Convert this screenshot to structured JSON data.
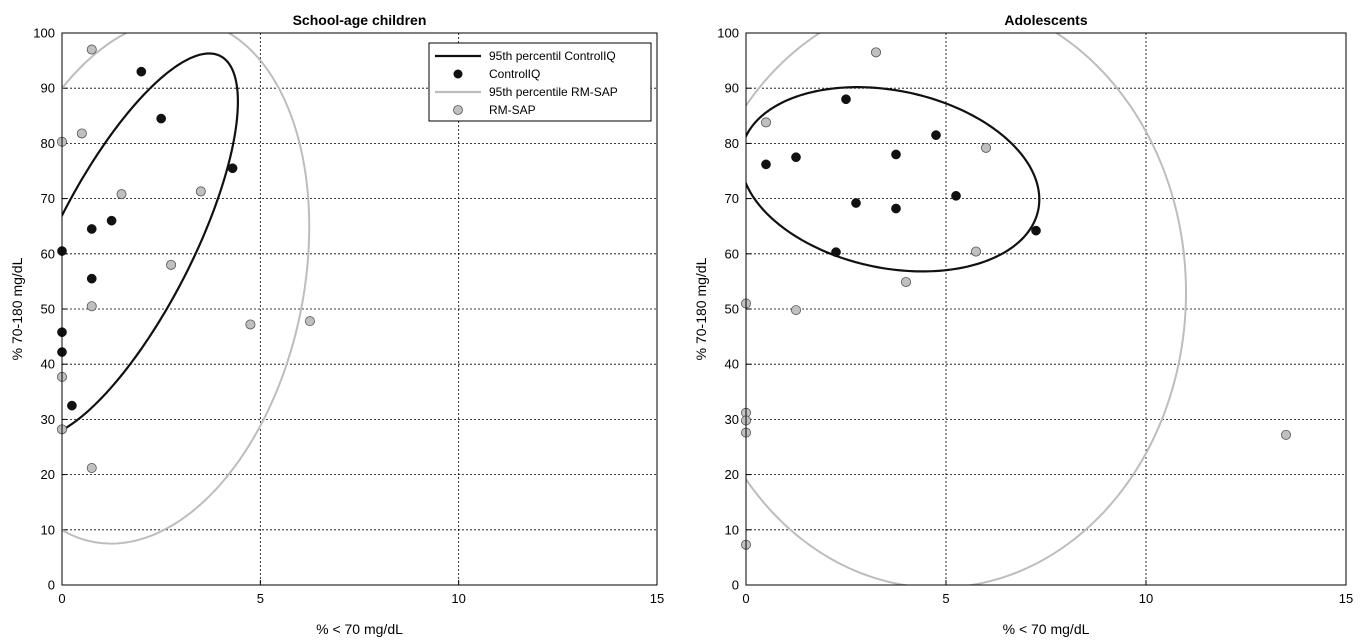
{
  "colors": {
    "controliq": "#111111",
    "rmsap_line": "#bdbdbd",
    "rmsap_marker": "#c0c0c0",
    "grid": "#000000",
    "axis": "#000000"
  },
  "chart_data": [
    {
      "type": "scatter",
      "title": "School-age children",
      "xlabel": "% < 70 mg/dL",
      "ylabel": "% 70-180 mg/dL",
      "xlim": [
        0,
        15
      ],
      "ylim": [
        0,
        100
      ],
      "xticks": [
        0,
        5,
        10,
        15
      ],
      "yticks": [
        0,
        10,
        20,
        30,
        40,
        50,
        60,
        70,
        80,
        90,
        100
      ],
      "grid": true,
      "legend": {
        "placement": "top-right",
        "entries": [
          "95th percentil ControlIQ",
          "ControlIQ",
          "95th percentile RM-SAP",
          "RM-SAP"
        ]
      },
      "series": [
        {
          "name": "ControlIQ",
          "kind": "points",
          "x": [
            2.0,
            2.5,
            4.3,
            1.25,
            0.75,
            0.0,
            0.75,
            0.0,
            0.0,
            0.25
          ],
          "y": [
            93,
            84.5,
            75.5,
            66,
            64.5,
            60.5,
            55.5,
            45.8,
            42.2,
            32.5
          ]
        },
        {
          "name": "RM-SAP",
          "kind": "points",
          "x": [
            0.75,
            0.5,
            0.0,
            1.5,
            3.5,
            2.75,
            0.75,
            4.75,
            6.25,
            0.0,
            0.0,
            0.75
          ],
          "y": [
            97,
            81.8,
            80.3,
            70.8,
            71.3,
            58,
            50.5,
            47.2,
            47.8,
            37.7,
            28.2,
            21.2
          ]
        },
        {
          "name": "95th percentil ControlIQ",
          "kind": "ellipse",
          "center": [
            1.55,
            61.5
          ],
          "axes": [
            1.75,
            38.0
          ],
          "rotation_deg": -25
        },
        {
          "name": "95th percentile RM-SAP",
          "kind": "ellipse",
          "center": [
            2.1,
            55.0
          ],
          "axes": [
            4.0,
            48.0
          ],
          "rotation_deg": -10
        }
      ]
    },
    {
      "type": "scatter",
      "title": "Adolescents",
      "xlabel": "% < 70 mg/dL",
      "ylabel": "% 70-180 mg/dL",
      "xlim": [
        0,
        15
      ],
      "ylim": [
        0,
        100
      ],
      "xticks": [
        0,
        5,
        10,
        15
      ],
      "yticks": [
        0,
        10,
        20,
        30,
        40,
        50,
        60,
        70,
        80,
        90,
        100
      ],
      "grid": true,
      "series": [
        {
          "name": "ControlIQ",
          "kind": "points",
          "x": [
            2.5,
            0.5,
            1.25,
            3.75,
            4.75,
            2.75,
            3.75,
            5.25,
            2.25,
            7.25
          ],
          "y": [
            88,
            76.2,
            77.5,
            78,
            81.5,
            69.2,
            68.2,
            70.5,
            60.3,
            64.2
          ]
        },
        {
          "name": "RM-SAP",
          "kind": "points",
          "x": [
            3.25,
            0.5,
            6.0,
            5.75,
            4.0,
            0.0,
            1.25,
            0.0,
            0.0,
            0.0,
            0.0,
            13.5
          ],
          "y": [
            96.5,
            83.8,
            79.2,
            60.4,
            54.9,
            51,
            49.8,
            31.2,
            29.8,
            27.6,
            7.3,
            27.2
          ]
        },
        {
          "name": "95th percentil ControlIQ",
          "kind": "ellipse",
          "center": [
            3.6,
            73.5
          ],
          "axes": [
            3.8,
            16.0
          ],
          "rotation_deg": -14
        },
        {
          "name": "95th percentile RM-SAP",
          "kind": "ellipse",
          "center": [
            4.8,
            53.0
          ],
          "axes": [
            6.2,
            53.5
          ],
          "rotation_deg": 0
        }
      ]
    }
  ]
}
